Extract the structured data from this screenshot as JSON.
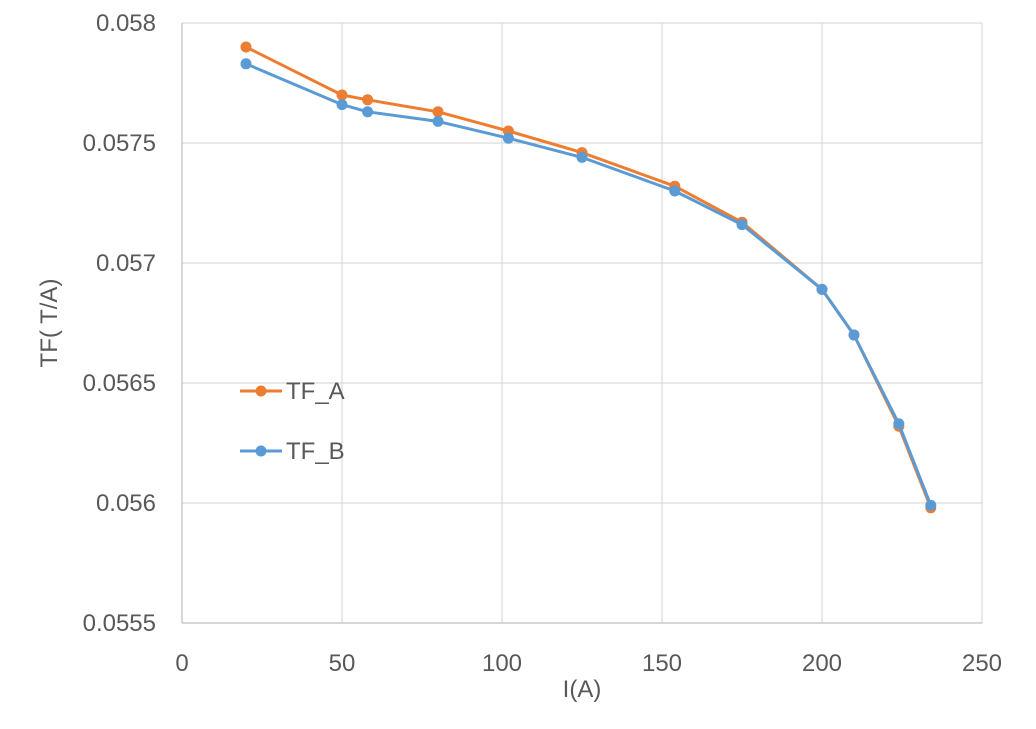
{
  "chart_data": {
    "type": "line",
    "title": "",
    "xlabel": "I(A)",
    "ylabel": "TF( T/A)",
    "xlim": [
      0,
      250
    ],
    "ylim": [
      0.0555,
      0.058
    ],
    "x_ticks": [
      0,
      50,
      100,
      150,
      200,
      250
    ],
    "y_ticks": [
      0.0555,
      0.056,
      0.0565,
      0.057,
      0.0575,
      0.058
    ],
    "x_tick_labels": [
      "0",
      "50",
      "100",
      "150",
      "200",
      "250"
    ],
    "y_tick_labels": [
      "0.0555",
      "0.056",
      "0.0565",
      "0.057",
      "0.0575",
      "0.058"
    ],
    "grid": true,
    "legend_position": "left-middle",
    "series": [
      {
        "name": "TF_A",
        "color": "#ED7D31",
        "x": [
          20,
          50,
          58,
          80,
          102,
          125,
          154,
          175,
          200,
          210,
          224,
          234
        ],
        "y": [
          0.0579,
          0.0577,
          0.05768,
          0.05763,
          0.05755,
          0.05746,
          0.05732,
          0.05717,
          0.05689,
          0.0567,
          0.05632,
          0.05598
        ]
      },
      {
        "name": "TF_B",
        "color": "#5B9BD5",
        "x": [
          20,
          50,
          58,
          80,
          102,
          125,
          154,
          175,
          200,
          210,
          224,
          234
        ],
        "y": [
          0.05783,
          0.05766,
          0.05763,
          0.05759,
          0.05752,
          0.05744,
          0.0573,
          0.05716,
          0.05689,
          0.0567,
          0.05633,
          0.05599
        ]
      }
    ]
  }
}
